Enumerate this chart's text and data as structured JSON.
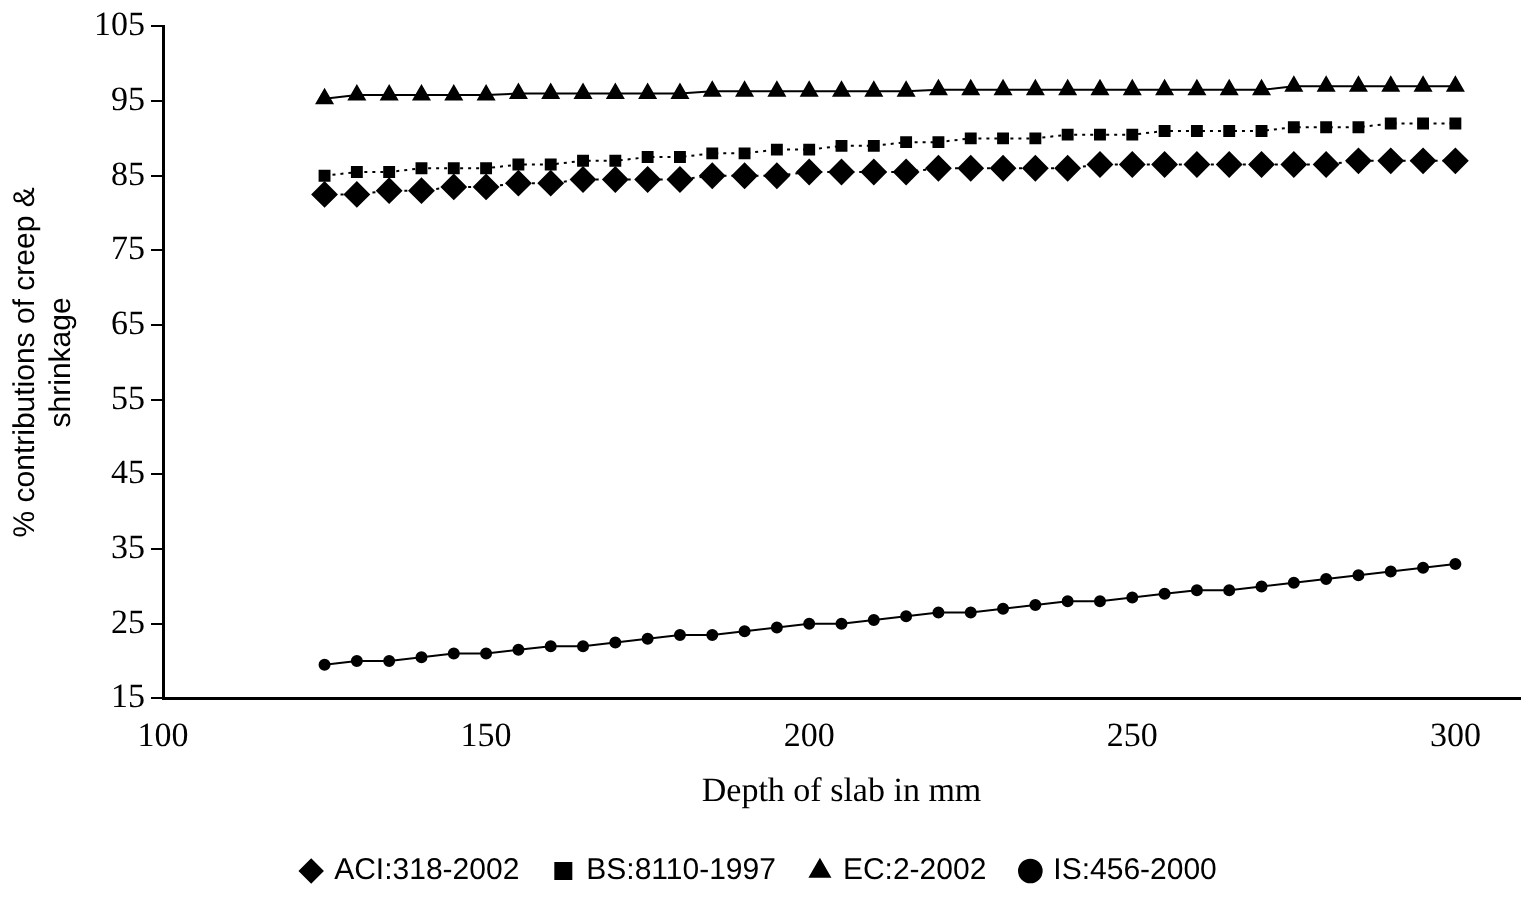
{
  "chart_data": {
    "type": "line",
    "xlabel": "Depth of slab in mm",
    "ylabel": "% contributions of creep & shrinkage",
    "x": [
      125,
      130,
      135,
      140,
      145,
      150,
      155,
      160,
      165,
      170,
      175,
      180,
      185,
      190,
      195,
      200,
      205,
      210,
      215,
      220,
      225,
      230,
      235,
      240,
      245,
      250,
      255,
      260,
      265,
      270,
      275,
      280,
      285,
      290,
      295,
      300
    ],
    "xlim": [
      100,
      310
    ],
    "xticks": [
      100,
      150,
      200,
      250,
      300
    ],
    "ylim": [
      15,
      105
    ],
    "yticks": [
      15,
      25,
      35,
      45,
      55,
      65,
      75,
      85,
      95,
      105
    ],
    "grid": false,
    "legend": "bottom",
    "series": [
      {
        "name": "ACI:318-2002",
        "color": "#000000",
        "marker": "diamond",
        "line_style": "dotted",
        "values": [
          82.5,
          82.5,
          83,
          83,
          83.5,
          83.5,
          84,
          84,
          84.5,
          84.5,
          84.5,
          84.5,
          85,
          85,
          85,
          85.5,
          85.5,
          85.5,
          85.5,
          86,
          86,
          86,
          86,
          86,
          86.5,
          86.5,
          86.5,
          86.5,
          86.5,
          86.5,
          86.5,
          86.5,
          87,
          87,
          87,
          87
        ]
      },
      {
        "name": "BS:8110-1997",
        "color": "#000000",
        "marker": "square",
        "line_style": "dotted",
        "values": [
          85,
          85.5,
          85.5,
          86,
          86,
          86,
          86.5,
          86.5,
          87,
          87,
          87.5,
          87.5,
          88,
          88,
          88.5,
          88.5,
          89,
          89,
          89.5,
          89.5,
          90,
          90,
          90,
          90.5,
          90.5,
          90.5,
          91,
          91,
          91,
          91,
          91.5,
          91.5,
          91.5,
          92,
          92,
          92
        ]
      },
      {
        "name": "EC:2-2002",
        "color": "#000000",
        "marker": "triangle",
        "line_style": "solid",
        "values": [
          95.3,
          95.8,
          95.8,
          95.8,
          95.8,
          95.8,
          96,
          96,
          96,
          96,
          96,
          96,
          96.3,
          96.3,
          96.3,
          96.3,
          96.3,
          96.3,
          96.3,
          96.5,
          96.5,
          96.5,
          96.5,
          96.5,
          96.5,
          96.5,
          96.5,
          96.5,
          96.5,
          96.5,
          97,
          97,
          97,
          97,
          97,
          97
        ]
      },
      {
        "name": "IS:456-2000",
        "color": "#000000",
        "marker": "circle",
        "line_style": "solid",
        "values": [
          19.5,
          20,
          20,
          20.5,
          21,
          21,
          21.5,
          22,
          22,
          22.5,
          23,
          23.5,
          23.5,
          24,
          24.5,
          25,
          25,
          25.5,
          26,
          26.5,
          26.5,
          27,
          27.5,
          28,
          28,
          28.5,
          29,
          29.5,
          29.5,
          30,
          30.5,
          31,
          31.5,
          32,
          32.5,
          33
        ]
      }
    ]
  }
}
